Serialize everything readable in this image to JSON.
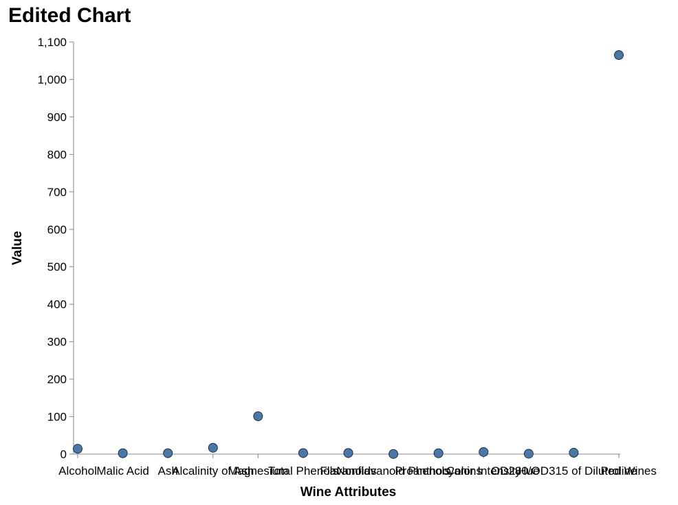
{
  "chart_data": {
    "type": "scatter",
    "title": "Edited Chart",
    "xlabel": "Wine Attributes",
    "ylabel": "Value",
    "categories": [
      "Alcohol",
      "Malic Acid",
      "Ash",
      "Alcalinity of Ash",
      "Magnesium",
      "Total Phenols",
      "Flavanoids",
      "Nonflavanoid Phenols",
      "Proanthocyanins",
      "Color Intensity",
      "Hue",
      "OD280/OD315 of Diluted Wines",
      "Proline"
    ],
    "values": [
      14.2,
      2.3,
      2.4,
      16.8,
      101,
      2.8,
      3.0,
      0.3,
      2.3,
      5.6,
      1.0,
      3.6,
      1065
    ],
    "ylim": [
      0,
      1100
    ],
    "yticks": [
      0,
      100,
      200,
      300,
      400,
      500,
      600,
      700,
      800,
      900,
      1000,
      1100
    ],
    "ytick_labels": [
      "0",
      "100",
      "200",
      "300",
      "400",
      "500",
      "600",
      "700",
      "800",
      "900",
      "1,000",
      "1,100"
    ],
    "grid": false,
    "colors": {
      "point_fill": "#4c78a8",
      "point_stroke": "#1f2f3f",
      "axis": "#888888"
    }
  }
}
